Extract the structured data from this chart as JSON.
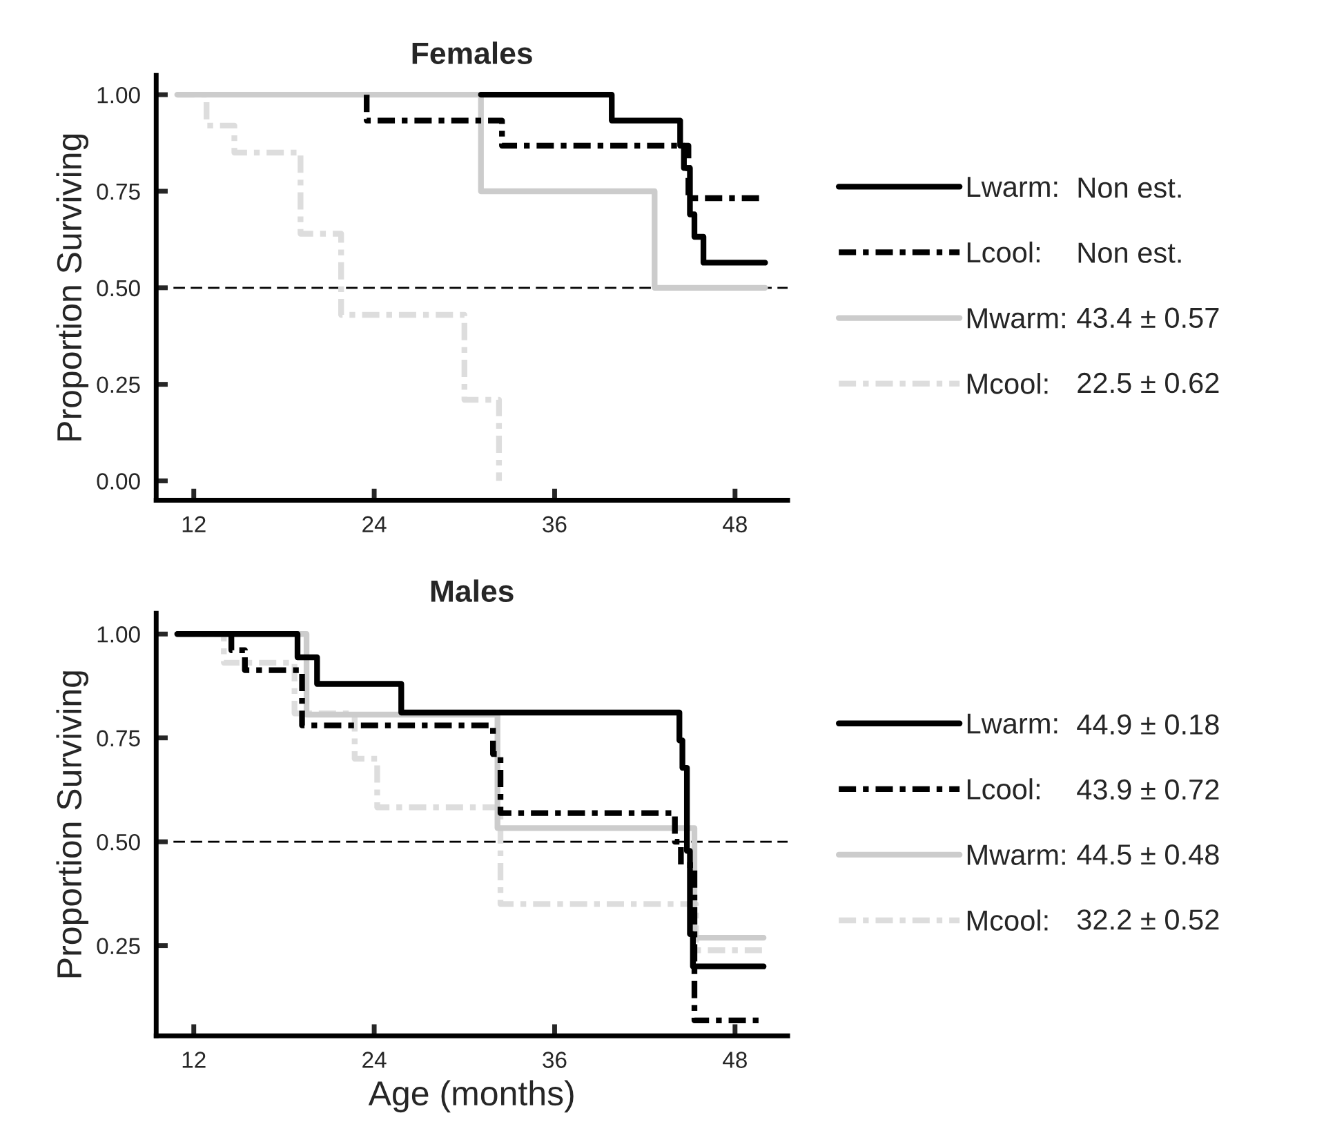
{
  "chart_data": [
    {
      "type": "step",
      "title": "Females",
      "ylabel": "Proportion Surviving",
      "xlim": [
        9.5,
        51.5
      ],
      "xticks": [
        12,
        24,
        36,
        48
      ],
      "ylim": [
        -0.05,
        1.05
      ],
      "yticks": [
        {
          "value": 0,
          "label": "0.00"
        },
        {
          "value": 0.25,
          "label": "0.25"
        },
        {
          "value": 0.5,
          "label": "0.50"
        },
        {
          "value": 0.75,
          "label": "0.75"
        },
        {
          "value": 1,
          "label": "1.00"
        }
      ],
      "grid": false,
      "legend": "right",
      "ref_lines": [
        {
          "axis": "y",
          "value": 0.5,
          "color": "#000000",
          "line_style": "dashed"
        }
      ],
      "annotations": [
        "Non est.",
        "Non est.",
        "43.4 ± 0.57",
        "22.5 ± 0.62"
      ],
      "series": [
        {
          "name": "Lwarm:",
          "color": "#000000",
          "line_style": "solid",
          "x": [
            31.1,
            39.8,
            44.35,
            44.6,
            45.0,
            45.3,
            45.9,
            50.0
          ],
          "values": [
            1.0,
            0.933,
            0.868,
            0.81,
            0.69,
            0.632,
            0.565,
            0.565
          ]
        },
        {
          "name": "Lcool:",
          "color": "#000000",
          "line_style": "dashdot",
          "x": [
            23.5,
            23.5,
            32.5,
            44.9,
            50.0
          ],
          "values": [
            1.0,
            0.933,
            0.868,
            0.732,
            0.732
          ]
        },
        {
          "name": "Mwarm:",
          "color": "#cccccc",
          "line_style": "solid",
          "x": [
            10.9,
            31.1,
            42.65,
            50.0
          ],
          "values": [
            1.0,
            0.75,
            0.5,
            0.5
          ]
        },
        {
          "name": "Mcool:",
          "color": "#dddddd",
          "line_style": "dashdot",
          "x": [
            10.9,
            12.85,
            14.7,
            19.1,
            21.8,
            30.0,
            32.3
          ],
          "values": [
            1.0,
            0.92,
            0.85,
            0.64,
            0.43,
            0.21,
            0.0
          ]
        }
      ]
    },
    {
      "type": "step",
      "title": "Males",
      "xlabel": "Age (months)",
      "ylabel": "Proportion Surviving",
      "xlim": [
        9.5,
        51.5
      ],
      "xticks": [
        12,
        24,
        36,
        48
      ],
      "ylim": [
        0.033,
        1.05
      ],
      "yticks": [
        {
          "value": 0.25,
          "label": "0.25"
        },
        {
          "value": 0.5,
          "label": "0.50"
        },
        {
          "value": 0.75,
          "label": "0.75"
        },
        {
          "value": 1,
          "label": "1.00"
        }
      ],
      "grid": false,
      "legend": "right",
      "ref_lines": [
        {
          "axis": "y",
          "value": 0.5,
          "color": "#000000",
          "line_style": "dashed"
        }
      ],
      "annotations": [
        "44.9 ± 0.18",
        "43.9 ± 0.72",
        "44.5 ± 0.48",
        "32.2 ± 0.52"
      ],
      "series": [
        {
          "name": "Lwarm:",
          "color": "#000000",
          "line_style": "solid",
          "x": [
            10.9,
            18.9,
            20.2,
            25.8,
            44.3,
            44.5,
            44.8,
            45.0,
            45.2,
            45.4,
            49.9
          ],
          "values": [
            1.0,
            0.944,
            0.88,
            0.811,
            0.744,
            0.678,
            0.478,
            0.278,
            0.2,
            0.2,
            0.2
          ]
        },
        {
          "name": "Lcool:",
          "color": "#000000",
          "line_style": "dashdot",
          "x": [
            14.5,
            14.5,
            15.4,
            19.2,
            31.9,
            32.4,
            44.0,
            44.4,
            45.3,
            49.9
          ],
          "values": [
            1.0,
            0.961,
            0.913,
            0.78,
            0.711,
            0.569,
            0.5,
            0.444,
            0.07,
            0.07
          ]
        },
        {
          "name": "Mwarm:",
          "color": "#cccccc",
          "line_style": "solid",
          "x": [
            10.9,
            19.5,
            32.2,
            45.3,
            49.9
          ],
          "values": [
            1.0,
            0.806,
            0.533,
            0.269,
            0.269
          ]
        },
        {
          "name": "Mcool:",
          "color": "#dddddd",
          "line_style": "dashdot",
          "x": [
            10.9,
            14.0,
            18.7,
            22.7,
            24.2,
            32.4,
            45.4,
            49.9
          ],
          "values": [
            1.0,
            0.931,
            0.809,
            0.7,
            0.583,
            0.35,
            0.239,
            0.239
          ]
        }
      ]
    }
  ]
}
